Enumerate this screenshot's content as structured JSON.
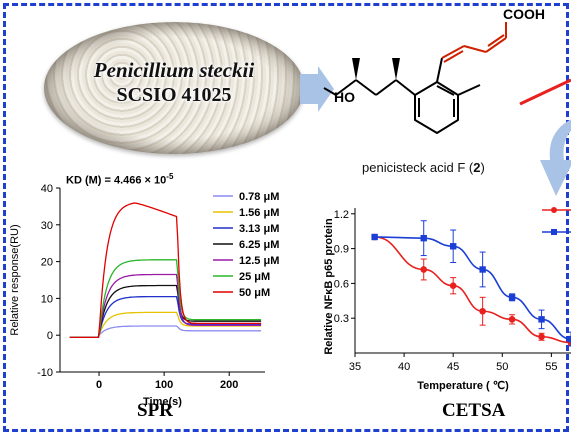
{
  "figure": {
    "petri_species": "Penicillium steckii",
    "petri_strain": "SCSIO 41025",
    "compound_label": "penicisteck acid F (2)",
    "compound_label_prefix": "penicisteck acid F (",
    "compound_label_number": "2",
    "compound_label_suffix": ")",
    "structure_groups": [
      "COOH",
      "HO"
    ],
    "spr_label": "SPR",
    "cetsa_label": "CETSA",
    "kd_text": "KD (M) = 4.466 × 10",
    "kd_exponent": "-5"
  },
  "colors": {
    "frame": "#1f3fd0",
    "arrow": "#a9c3e6",
    "red_series": "#e8201e",
    "blue_series": "#1b3ed6",
    "alkene": "#cc2200",
    "acid_o": "#cc2200",
    "ho": "#cc2200"
  },
  "chart_data": [
    {
      "type": "line",
      "title": "KD (M) = 4.466 × 10-5",
      "xlabel": "Time(s)",
      "ylabel": "Relative response(RU)",
      "xlim": [
        -60,
        255
      ],
      "ylim": [
        -10,
        40
      ],
      "xticks": [
        0,
        100,
        200
      ],
      "yticks": [
        -10,
        0,
        10,
        20,
        30,
        40
      ],
      "grid": false,
      "legend_position": "top-right",
      "injection": {
        "start": 0,
        "end": 120
      },
      "series": [
        {
          "name": "0.78 μM",
          "color": "#8c8cf0",
          "plateau": 2.5,
          "dissoc_end": 1.2
        },
        {
          "name": "1.56 μM",
          "color": "#e6c200",
          "plateau": 6.2,
          "dissoc_end": 2.5
        },
        {
          "name": "3.13 μM",
          "color": "#2030c8",
          "plateau": 10.5,
          "dissoc_end": 3.0
        },
        {
          "name": "6.25 μM",
          "color": "#111111",
          "plateau": 13.5,
          "dissoc_end": 3.8
        },
        {
          "name": "12.5 μM",
          "color": "#9a1aa8",
          "plateau": 16.5,
          "dissoc_end": 2.7
        },
        {
          "name": "25 μM",
          "color": "#2ab52a",
          "plateau": 20.5,
          "dissoc_end": 4.2
        },
        {
          "name": "50 μM",
          "color": "#e00000",
          "plateau": 36.3,
          "dissoc_end": 3.2,
          "end_value": 32.2
        }
      ]
    },
    {
      "type": "line",
      "xlabel": "Temperature ( ℃)",
      "ylabel": "Relative NFκB p65 protein",
      "xlim": [
        35,
        57
      ],
      "ylim": [
        0.0,
        1.25
      ],
      "xticks": [
        35,
        40,
        45,
        50,
        55
      ],
      "yticks": [
        0.3,
        0.6,
        0.9,
        1.2
      ],
      "grid": false,
      "series": [
        {
          "name": "",
          "color": "#e8201e",
          "x": [
            37,
            42,
            45,
            48,
            51,
            54,
            57
          ],
          "y": [
            1.0,
            0.72,
            0.58,
            0.36,
            0.29,
            0.14,
            0.09
          ],
          "err": [
            0,
            0.09,
            0.07,
            0.12,
            0.04,
            0.03,
            0.02
          ]
        },
        {
          "name": "",
          "color": "#1b3ed6",
          "x": [
            37,
            42,
            45,
            48,
            51,
            54,
            57
          ],
          "y": [
            1.0,
            0.99,
            0.92,
            0.72,
            0.48,
            0.29,
            0.12
          ],
          "err": [
            0,
            0.15,
            0.14,
            0.15,
            0.03,
            0.08,
            0.06
          ]
        }
      ]
    }
  ]
}
